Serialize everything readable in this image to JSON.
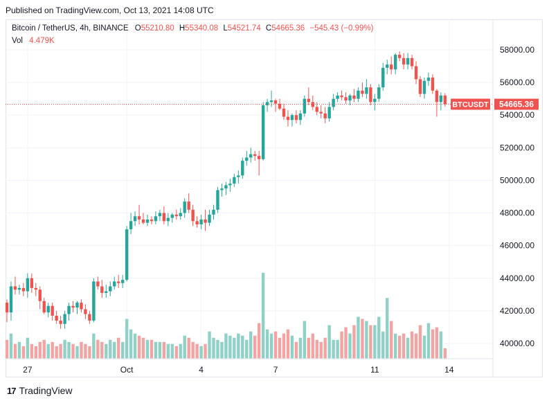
{
  "header": {
    "published": "Published on TradingView.com, Oct 13, 2021 14:08 UTC"
  },
  "legend": {
    "symbol": "Bitcoin / TetherUS, 4h, BINANCE",
    "o_label": "O",
    "o": "55210.80",
    "h_label": "H",
    "h": "55340.08",
    "l_label": "L",
    "l": "54521.74",
    "c_label": "C",
    "c": "54665.36",
    "change": "−545.43 (−0.99%)",
    "vol_label": "Vol",
    "vol": "4.479K"
  },
  "price_tag": {
    "symbol": "BTCUSDT",
    "price": "54665.36"
  },
  "footer": {
    "logo_text": "17",
    "brand": "TradingView"
  },
  "colors": {
    "up": "#26a69a",
    "down": "#ef5350",
    "vol_up": "#8fd1c7",
    "vol_down": "#f3a3a2",
    "grid": "#f0f3fa"
  },
  "chart_data": {
    "type": "candlestick",
    "symbol": "Bitcoin / TetherUS",
    "interval": "4h",
    "exchange": "BINANCE",
    "ylim": [
      39500,
      59000
    ],
    "y_ticks": [
      "58000.00",
      "56000.00",
      "54000.00",
      "52000.00",
      "50000.00",
      "48000.00",
      "46000.00",
      "44000.00",
      "42000.00",
      "40000.00"
    ],
    "y_tick_values": [
      58000,
      56000,
      54000,
      52000,
      50000,
      48000,
      46000,
      44000,
      42000,
      40000
    ],
    "x_ticks": [
      {
        "label": "27",
        "index": 5
      },
      {
        "label": "Oct",
        "index": 29
      },
      {
        "label": "4",
        "index": 47
      },
      {
        "label": "7",
        "index": 65
      },
      {
        "label": "11",
        "index": 89
      },
      {
        "label": "14",
        "index": 107
      }
    ],
    "last_price": 54665.36,
    "candles": [
      [
        42500,
        42700,
        41300,
        41900
      ],
      [
        41900,
        43800,
        41400,
        43500
      ],
      [
        43500,
        44100,
        43000,
        43300
      ],
      [
        43300,
        43600,
        43000,
        43400
      ],
      [
        43400,
        43700,
        42900,
        43200
      ],
      [
        43200,
        44300,
        42800,
        44000
      ],
      [
        44000,
        44300,
        43100,
        43400
      ],
      [
        43400,
        43700,
        42900,
        43300
      ],
      [
        43300,
        43500,
        42100,
        42600
      ],
      [
        42600,
        42800,
        41800,
        41900
      ],
      [
        41900,
        42500,
        41600,
        42300
      ],
      [
        42300,
        42500,
        41400,
        41700
      ],
      [
        41700,
        42000,
        41200,
        41400
      ],
      [
        41400,
        41700,
        40900,
        41200
      ],
      [
        41200,
        42000,
        40900,
        41800
      ],
      [
        41800,
        42500,
        41400,
        42300
      ],
      [
        42300,
        42600,
        41900,
        42200
      ],
      [
        42200,
        42600,
        41800,
        42500
      ],
      [
        42500,
        42700,
        41900,
        42100
      ],
      [
        42100,
        42400,
        41500,
        41800
      ],
      [
        41800,
        42000,
        41200,
        41400
      ],
      [
        41400,
        44000,
        41300,
        43800
      ],
      [
        43800,
        44100,
        43300,
        43500
      ],
      [
        43500,
        43900,
        42800,
        43100
      ],
      [
        43100,
        43600,
        42800,
        43200
      ],
      [
        43200,
        43800,
        42900,
        43500
      ],
      [
        43500,
        44100,
        43300,
        43800
      ],
      [
        43800,
        44200,
        43400,
        43700
      ],
      [
        43700,
        44200,
        43400,
        43900
      ],
      [
        43900,
        47200,
        43800,
        47000
      ],
      [
        47000,
        48000,
        46700,
        47500
      ],
      [
        47500,
        48100,
        47200,
        47800
      ],
      [
        47800,
        48500,
        47300,
        47600
      ],
      [
        47600,
        48000,
        47300,
        47400
      ],
      [
        47400,
        47900,
        47200,
        47600
      ],
      [
        47600,
        47800,
        47300,
        47500
      ],
      [
        47500,
        48100,
        47300,
        47800
      ],
      [
        47800,
        48200,
        47500,
        48000
      ],
      [
        48000,
        48400,
        47300,
        47500
      ],
      [
        47500,
        48000,
        47200,
        47700
      ],
      [
        47700,
        48000,
        47400,
        47900
      ],
      [
        47900,
        48200,
        47600,
        47800
      ],
      [
        47800,
        48300,
        47600,
        48000
      ],
      [
        48000,
        48900,
        47700,
        48700
      ],
      [
        48700,
        49200,
        48000,
        48200
      ],
      [
        48200,
        48500,
        47200,
        47500
      ],
      [
        47500,
        47800,
        47100,
        47300
      ],
      [
        47300,
        47900,
        47000,
        47600
      ],
      [
        47600,
        48200,
        46900,
        47400
      ],
      [
        47400,
        48200,
        47200,
        47900
      ],
      [
        47900,
        48500,
        47600,
        48200
      ],
      [
        48200,
        49600,
        48000,
        49400
      ],
      [
        49400,
        49800,
        49000,
        49500
      ],
      [
        49500,
        49900,
        49100,
        49700
      ],
      [
        49700,
        50100,
        49300,
        49800
      ],
      [
        49800,
        50400,
        49600,
        50200
      ],
      [
        50200,
        50600,
        49800,
        50300
      ],
      [
        50300,
        51400,
        50100,
        51200
      ],
      [
        51200,
        51800,
        50900,
        51400
      ],
      [
        51400,
        52000,
        51100,
        51600
      ],
      [
        51600,
        51800,
        51200,
        51500
      ],
      [
        51500,
        51800,
        50300,
        51300
      ],
      [
        51300,
        54800,
        51200,
        54600
      ],
      [
        54600,
        55000,
        54200,
        54800
      ],
      [
        54800,
        55500,
        54500,
        54900
      ],
      [
        54900,
        55000,
        54200,
        54700
      ],
      [
        54700,
        55000,
        54300,
        54400
      ],
      [
        54400,
        54700,
        53700,
        53900
      ],
      [
        53900,
        54300,
        53300,
        53700
      ],
      [
        53700,
        54100,
        53300,
        54000
      ],
      [
        54000,
        54300,
        53500,
        53700
      ],
      [
        53700,
        54300,
        53400,
        54100
      ],
      [
        54100,
        55200,
        53900,
        55000
      ],
      [
        55000,
        55700,
        54600,
        54800
      ],
      [
        54800,
        55200,
        54300,
        54500
      ],
      [
        54500,
        54800,
        54000,
        54200
      ],
      [
        54200,
        54600,
        53800,
        54100
      ],
      [
        54100,
        54500,
        53500,
        53800
      ],
      [
        53800,
        54800,
        53600,
        54500
      ],
      [
        54500,
        55300,
        54300,
        55000
      ],
      [
        55000,
        55400,
        54800,
        55200
      ],
      [
        55200,
        55500,
        54900,
        55100
      ],
      [
        55100,
        55400,
        54700,
        54900
      ],
      [
        54900,
        55300,
        54600,
        55200
      ],
      [
        55200,
        55600,
        54800,
        55000
      ],
      [
        55000,
        55700,
        54800,
        55500
      ],
      [
        55500,
        56000,
        55100,
        55300
      ],
      [
        55300,
        56200,
        55000,
        55700
      ],
      [
        55700,
        55900,
        54600,
        54800
      ],
      [
        54800,
        55300,
        54300,
        55000
      ],
      [
        55000,
        55900,
        54800,
        55700
      ],
      [
        55700,
        57200,
        55500,
        56900
      ],
      [
        56900,
        57400,
        56500,
        57100
      ],
      [
        57100,
        57600,
        56500,
        56800
      ],
      [
        56800,
        57800,
        56500,
        57700
      ],
      [
        57700,
        57900,
        57300,
        57500
      ],
      [
        57500,
        57800,
        56800,
        57100
      ],
      [
        57100,
        57800,
        56800,
        57500
      ],
      [
        57500,
        57700,
        56800,
        57000
      ],
      [
        57000,
        57300,
        55900,
        56200
      ],
      [
        56200,
        56400,
        55100,
        55300
      ],
      [
        55300,
        56300,
        55000,
        56100
      ],
      [
        56100,
        56600,
        55800,
        56300
      ],
      [
        56300,
        56500,
        55300,
        55500
      ],
      [
        55500,
        55600,
        53900,
        54800
      ],
      [
        54800,
        55400,
        54300,
        55200
      ],
      [
        55200,
        55340,
        54522,
        54665
      ]
    ],
    "volume": [
      9,
      12,
      7,
      8,
      6,
      10,
      7,
      6,
      8,
      9,
      7,
      8,
      6,
      7,
      9,
      8,
      7,
      6,
      8,
      7,
      6,
      12,
      9,
      8,
      7,
      9,
      8,
      10,
      8,
      19,
      14,
      12,
      11,
      10,
      9,
      9,
      8,
      8,
      8,
      7,
      7,
      6,
      7,
      11,
      10,
      8,
      7,
      6,
      7,
      13,
      10,
      9,
      8,
      12,
      11,
      10,
      12,
      11,
      9,
      13,
      11,
      17,
      41,
      14,
      12,
      13,
      10,
      12,
      14,
      11,
      8,
      10,
      18,
      10,
      12,
      9,
      8,
      10,
      16,
      9,
      9,
      13,
      15,
      12,
      16,
      20,
      19,
      18,
      16,
      16,
      20,
      13,
      29,
      18,
      12,
      11,
      12,
      10,
      13,
      12,
      16,
      11,
      17,
      14,
      15,
      13,
      5
    ]
  }
}
